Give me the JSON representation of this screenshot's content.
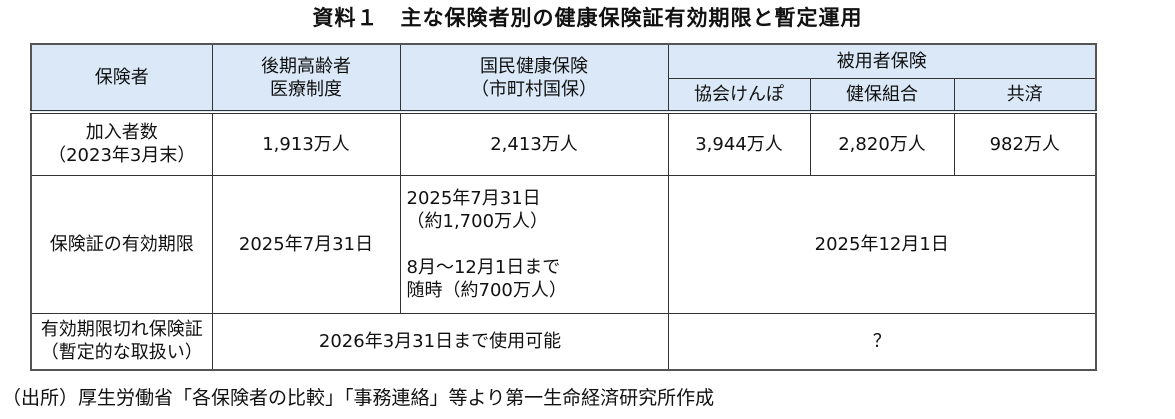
{
  "title": "資料１　主な保険者別の健康保険証有効期限と暫定運用",
  "header": {
    "insurer": "保険者",
    "kouki_1": "後期高齢者",
    "kouki_2": "医療制度",
    "kokuho_1": "国民健康保険",
    "kokuho_2": "（市町村国保）",
    "employee": "被用者保険",
    "kyokai": "協会けんぽ",
    "kenpo": "健保組合",
    "kyosai": "共済"
  },
  "rows": {
    "members": {
      "label_1": "加入者数",
      "label_2": "（2023年3月末）",
      "kouki": "1,913万人",
      "kokuho": "2,413万人",
      "kyokai": "3,944万人",
      "kenpo": "2,820万人",
      "kyosai": "982万人"
    },
    "expiry": {
      "label": "保険証の有効期限",
      "kouki": "2025年7月31日",
      "kokuho_1": "2025年7月31日",
      "kokuho_2": "（約1,700万人）",
      "kokuho_3": "8月～12月1日まで",
      "kokuho_4": "随時（約700万人）",
      "employee": "2025年12月1日"
    },
    "provisional": {
      "label_1": "有効期限切れ保険証",
      "label_2": "（暫定的な取扱い）",
      "kouki_kokuho": "2026年3月31日まで使用可能",
      "employee": "？"
    }
  },
  "source": "（出所）厚生労働省「各保険者の比較」「事務連絡」等より第一生命経済研究所作成"
}
